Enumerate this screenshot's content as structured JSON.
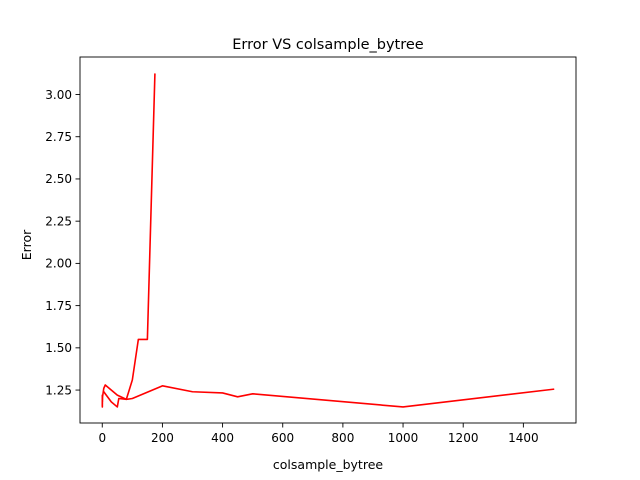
{
  "chart_data": {
    "type": "line",
    "title": "Error VS colsample_bytree",
    "xlabel": "colsample_bytree",
    "ylabel": "Error",
    "xlim": [
      -74,
      1575
    ],
    "ylim": [
      1.055,
      3.222
    ],
    "x_ticks": [
      0,
      200,
      400,
      600,
      800,
      1000,
      1200,
      1400
    ],
    "y_ticks": [
      1.25,
      1.5,
      1.75,
      2.0,
      2.25,
      2.5,
      2.75,
      3.0
    ],
    "x_tick_labels": [
      "0",
      "200",
      "400",
      "600",
      "800",
      "1000",
      "1200",
      "1400"
    ],
    "y_tick_labels": [
      "1.25",
      "1.50",
      "1.75",
      "2.00",
      "2.25",
      "2.50",
      "2.75",
      "3.00"
    ],
    "grid": false,
    "series": [
      {
        "color": "#ff0000",
        "points": [
          [
            0.1,
            1.16
          ],
          [
            0.2,
            1.22
          ],
          [
            0.3,
            1.15
          ],
          [
            0.4,
            1.21
          ],
          [
            0.5,
            1.17
          ],
          [
            0.6,
            1.2
          ],
          [
            0.7,
            1.18
          ],
          [
            0.8,
            1.22
          ],
          [
            0.9,
            1.19
          ],
          [
            1.0,
            1.21
          ],
          [
            5,
            1.26
          ],
          [
            10,
            1.28
          ],
          [
            50,
            1.22
          ],
          [
            80,
            1.195
          ],
          [
            100,
            1.2
          ],
          [
            200,
            1.275
          ],
          [
            300,
            1.24
          ],
          [
            400,
            1.233
          ],
          [
            450,
            1.21
          ],
          [
            500,
            1.228
          ],
          [
            1000,
            1.15
          ],
          [
            1500,
            1.255
          ]
        ]
      },
      {
        "color": "#ff0000",
        "points": [
          [
            5,
            1.24
          ],
          [
            30,
            1.18
          ],
          [
            50,
            1.15
          ],
          [
            55,
            1.2
          ],
          [
            80,
            1.195
          ],
          [
            100,
            1.31
          ],
          [
            120,
            1.55
          ],
          [
            150,
            1.55
          ],
          [
            175,
            3.12
          ]
        ]
      }
    ]
  }
}
